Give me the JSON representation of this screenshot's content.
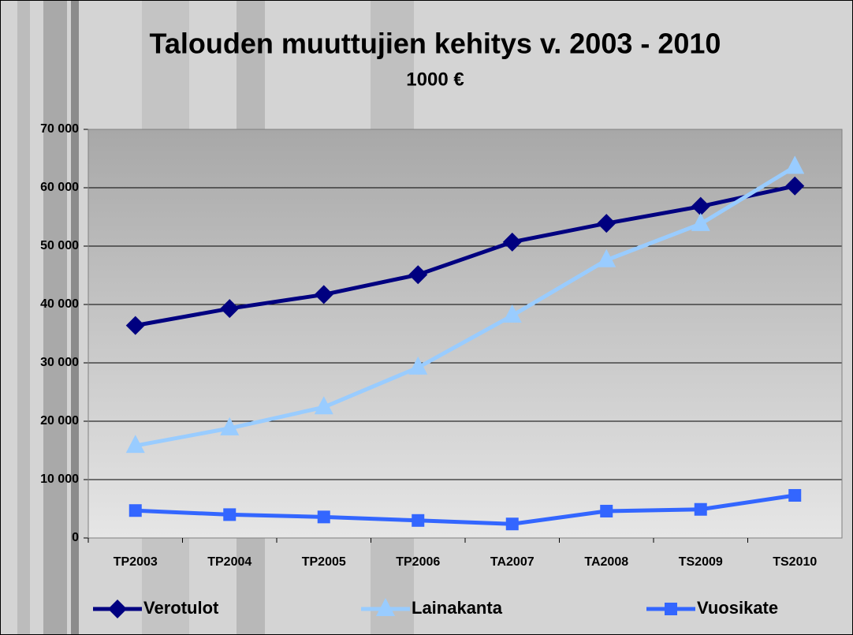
{
  "chart_data": {
    "type": "line",
    "title": "Talouden muuttujien kehitys v. 2003 - 2010",
    "subtitle": "1000 €",
    "categories": [
      "TP2003",
      "TP2004",
      "TP2005",
      "TP2006",
      "TA2007",
      "TA2008",
      "TS2009",
      "TS2010"
    ],
    "series": [
      {
        "name": "Verotulot",
        "color": "#000080",
        "marker": "diamond",
        "values": [
          36400,
          39300,
          41700,
          45100,
          50700,
          53900,
          56800,
          60300
        ]
      },
      {
        "name": "Lainakanta",
        "color": "#99ccff",
        "marker": "triangle",
        "values": [
          15800,
          18800,
          22400,
          29200,
          38100,
          47600,
          53800,
          63600
        ]
      },
      {
        "name": "Vuosikate",
        "color": "#3366ff",
        "marker": "square",
        "values": [
          4700,
          4000,
          3600,
          3000,
          2400,
          4600,
          4900,
          7300
        ]
      }
    ],
    "ylim": [
      0,
      70000
    ],
    "yticks": [
      0,
      {
        "value": 10000,
        "label": "10 000"
      },
      {
        "value": 20000,
        "label": "20 000"
      },
      {
        "value": 30000,
        "label": "30 000"
      },
      {
        "value": 40000,
        "label": "40 000"
      },
      {
        "value": 50000,
        "label": "50 000"
      },
      {
        "value": 60000,
        "label": "60 000"
      },
      {
        "value": 70000,
        "label": "70 000"
      }
    ],
    "grid": true,
    "legend": "bottom"
  }
}
